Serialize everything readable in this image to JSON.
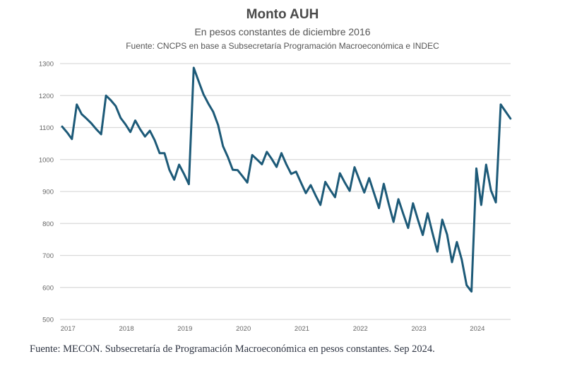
{
  "chart_data": {
    "type": "line",
    "title": "Monto AUH",
    "subtitle": "En pesos constantes de diciembre 2016",
    "source": "Fuente: CNCPS en base a Subsecretaría Programación Macroeconómica e INDEC",
    "xlabel": "",
    "ylabel": "",
    "ylim": [
      500,
      1300
    ],
    "y_ticks": [
      "500",
      "600",
      "700",
      "800",
      "900",
      "1000",
      "1100",
      "1200",
      "1300"
    ],
    "x_ticks": [
      "2017",
      "2018",
      "2019",
      "2020",
      "2021",
      "2022",
      "2023",
      "2024"
    ],
    "x_range": [
      "2017-01",
      "2024-09"
    ],
    "frequency": "monthly",
    "grid": "horizontal",
    "legend": "none",
    "line_color": "#1d5a78",
    "values": [
      1103,
      1085,
      1064,
      1172,
      1142,
      1128,
      1113,
      1095,
      1079,
      1200,
      1185,
      1167,
      1130,
      1110,
      1086,
      1122,
      1095,
      1072,
      1090,
      1060,
      1020,
      1020,
      968,
      937,
      984,
      955,
      923,
      1287,
      1245,
      1204,
      1175,
      1149,
      1108,
      1042,
      1008,
      968,
      967,
      948,
      928,
      1014,
      1000,
      985,
      1024,
      1002,
      977,
      1020,
      985,
      955,
      962,
      928,
      895,
      920,
      888,
      858,
      930,
      905,
      882,
      957,
      928,
      902,
      976,
      936,
      897,
      942,
      895,
      848,
      924,
      862,
      805,
      876,
      830,
      786,
      863,
      812,
      764,
      832,
      770,
      712,
      812,
      765,
      679,
      742,
      687,
      607,
      587,
      972,
      858,
      984,
      903,
      866,
      1172,
      1150,
      1128
    ]
  },
  "footer": "Fuente: MECON.  Subsecretaría de Programación Macroeconómica en pesos constantes. Sep 2024."
}
